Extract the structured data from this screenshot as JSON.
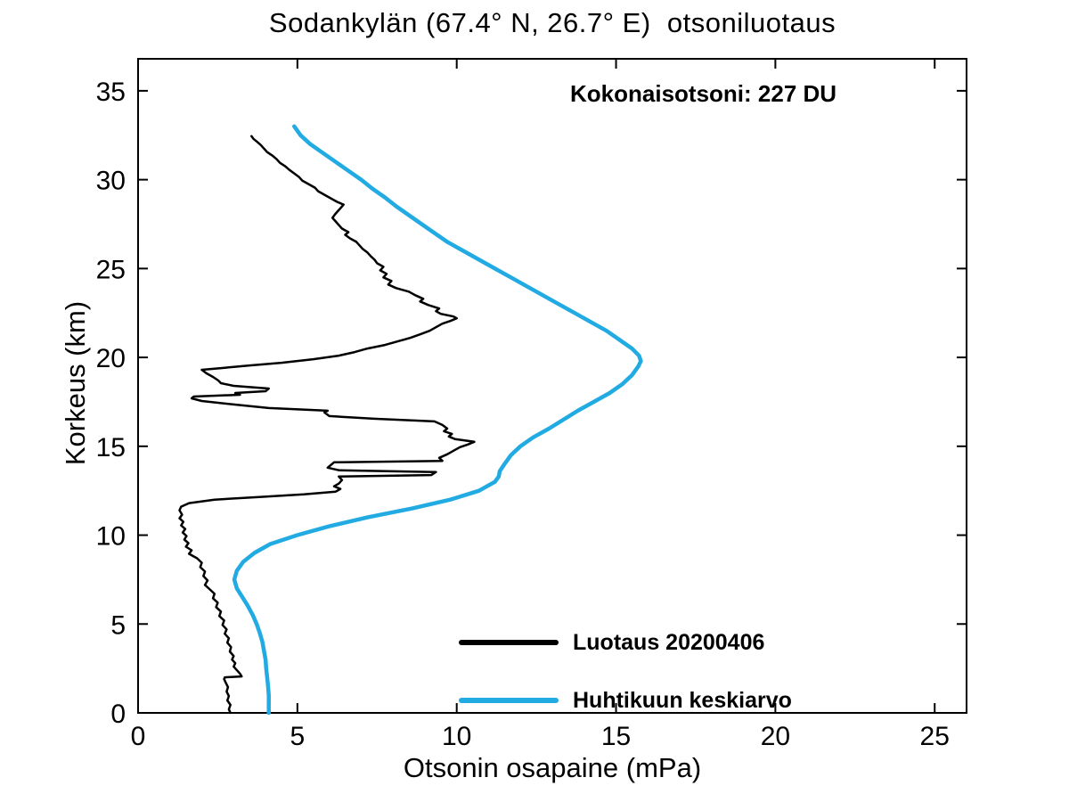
{
  "chart_data": {
    "type": "line",
    "title": "Sodankylän (67.4° N, 26.7° E)  otsoniluotaus",
    "xlabel": "Otsonin osapaine (mPa)",
    "ylabel": "Korkeus (km)",
    "annotation": "Kokonaisotsoni: 227 DU",
    "xlim": [
      0,
      26
    ],
    "ylim": [
      0,
      36.8
    ],
    "xticks": [
      0,
      5,
      10,
      15,
      20,
      25
    ],
    "yticks": [
      0,
      5,
      10,
      15,
      20,
      25,
      30,
      35
    ],
    "grid": false,
    "legend_position": "inside-bottom-right",
    "series": [
      {
        "name": "Luotaus 20200406",
        "color": "#000000",
        "width": 2.5,
        "points": [
          [
            2.9,
            0.0
          ],
          [
            2.85,
            0.2
          ],
          [
            2.9,
            0.45
          ],
          [
            2.8,
            0.7
          ],
          [
            2.85,
            0.95
          ],
          [
            2.78,
            1.2
          ],
          [
            2.82,
            1.45
          ],
          [
            2.75,
            1.7
          ],
          [
            2.7,
            1.9
          ],
          [
            2.72,
            2.0
          ],
          [
            3.25,
            2.05
          ],
          [
            3.2,
            2.2
          ],
          [
            3.1,
            2.4
          ],
          [
            3.0,
            2.6
          ],
          [
            3.05,
            2.8
          ],
          [
            2.95,
            3.0
          ],
          [
            3.0,
            3.2
          ],
          [
            2.88,
            3.45
          ],
          [
            2.92,
            3.7
          ],
          [
            2.8,
            3.95
          ],
          [
            2.85,
            4.2
          ],
          [
            2.72,
            4.45
          ],
          [
            2.78,
            4.7
          ],
          [
            2.65,
            4.95
          ],
          [
            2.7,
            5.2
          ],
          [
            2.55,
            5.45
          ],
          [
            2.6,
            5.7
          ],
          [
            2.45,
            5.95
          ],
          [
            2.5,
            6.2
          ],
          [
            2.35,
            6.45
          ],
          [
            2.4,
            6.7
          ],
          [
            2.25,
            6.95
          ],
          [
            2.1,
            7.2
          ],
          [
            2.18,
            7.45
          ],
          [
            2.05,
            7.7
          ],
          [
            2.1,
            7.95
          ],
          [
            1.95,
            8.2
          ],
          [
            2.0,
            8.45
          ],
          [
            1.85,
            8.7
          ],
          [
            1.6,
            8.95
          ],
          [
            1.68,
            9.15
          ],
          [
            1.5,
            9.35
          ],
          [
            1.58,
            9.55
          ],
          [
            1.45,
            9.75
          ],
          [
            1.52,
            9.95
          ],
          [
            1.4,
            10.15
          ],
          [
            1.48,
            10.35
          ],
          [
            1.35,
            10.55
          ],
          [
            1.42,
            10.75
          ],
          [
            1.3,
            10.95
          ],
          [
            1.38,
            11.15
          ],
          [
            1.3,
            11.4
          ],
          [
            1.35,
            11.6
          ],
          [
            1.6,
            11.8
          ],
          [
            2.4,
            12.0
          ],
          [
            3.8,
            12.15
          ],
          [
            5.2,
            12.3
          ],
          [
            6.2,
            12.45
          ],
          [
            6.35,
            12.6
          ],
          [
            6.15,
            12.75
          ],
          [
            6.3,
            12.9
          ],
          [
            6.4,
            13.1
          ],
          [
            6.3,
            13.3
          ],
          [
            9.2,
            13.38
          ],
          [
            9.35,
            13.55
          ],
          [
            6.3,
            13.65
          ],
          [
            5.95,
            13.8
          ],
          [
            6.05,
            13.95
          ],
          [
            6.15,
            14.1
          ],
          [
            9.55,
            14.18
          ],
          [
            9.45,
            14.35
          ],
          [
            9.7,
            14.55
          ],
          [
            9.9,
            14.75
          ],
          [
            10.1,
            14.95
          ],
          [
            10.35,
            15.1
          ],
          [
            10.55,
            15.25
          ],
          [
            9.95,
            15.4
          ],
          [
            9.75,
            15.55
          ],
          [
            9.85,
            15.7
          ],
          [
            9.6,
            15.85
          ],
          [
            9.7,
            16.0
          ],
          [
            9.55,
            16.2
          ],
          [
            9.3,
            16.4
          ],
          [
            7.4,
            16.55
          ],
          [
            6.0,
            16.7
          ],
          [
            5.85,
            16.9
          ],
          [
            5.95,
            17.0
          ],
          [
            4.1,
            17.15
          ],
          [
            3.0,
            17.35
          ],
          [
            2.0,
            17.55
          ],
          [
            1.68,
            17.7
          ],
          [
            1.75,
            17.8
          ],
          [
            3.2,
            17.9
          ],
          [
            3.05,
            18.0
          ],
          [
            4.0,
            18.1
          ],
          [
            4.1,
            18.25
          ],
          [
            3.0,
            18.4
          ],
          [
            2.6,
            18.55
          ],
          [
            2.52,
            18.7
          ],
          [
            2.35,
            18.9
          ],
          [
            2.15,
            19.1
          ],
          [
            2.0,
            19.3
          ],
          [
            2.6,
            19.4
          ],
          [
            3.5,
            19.55
          ],
          [
            4.5,
            19.7
          ],
          [
            5.5,
            19.9
          ],
          [
            6.3,
            20.1
          ],
          [
            6.8,
            20.3
          ],
          [
            7.2,
            20.5
          ],
          [
            7.75,
            20.7
          ],
          [
            8.15,
            20.9
          ],
          [
            8.55,
            21.1
          ],
          [
            8.85,
            21.3
          ],
          [
            9.15,
            21.5
          ],
          [
            9.35,
            21.7
          ],
          [
            9.55,
            21.9
          ],
          [
            9.8,
            22.05
          ],
          [
            10.0,
            22.2
          ],
          [
            9.9,
            22.3
          ],
          [
            9.5,
            22.45
          ],
          [
            9.35,
            22.6
          ],
          [
            9.45,
            22.75
          ],
          [
            9.1,
            22.95
          ],
          [
            8.85,
            23.15
          ],
          [
            8.95,
            23.3
          ],
          [
            8.7,
            23.5
          ],
          [
            8.5,
            23.7
          ],
          [
            8.1,
            23.9
          ],
          [
            7.85,
            24.1
          ],
          [
            7.95,
            24.3
          ],
          [
            7.7,
            24.5
          ],
          [
            7.8,
            24.7
          ],
          [
            7.6,
            24.9
          ],
          [
            7.7,
            25.1
          ],
          [
            7.5,
            25.3
          ],
          [
            7.42,
            25.5
          ],
          [
            7.3,
            25.7
          ],
          [
            7.2,
            25.9
          ],
          [
            7.05,
            26.1
          ],
          [
            6.95,
            26.3
          ],
          [
            6.85,
            26.5
          ],
          [
            6.65,
            26.7
          ],
          [
            6.5,
            26.9
          ],
          [
            6.6,
            27.05
          ],
          [
            6.4,
            27.25
          ],
          [
            6.3,
            27.45
          ],
          [
            6.2,
            27.65
          ],
          [
            6.1,
            27.85
          ],
          [
            6.18,
            28.05
          ],
          [
            6.28,
            28.25
          ],
          [
            6.38,
            28.45
          ],
          [
            6.45,
            28.6
          ],
          [
            6.25,
            28.75
          ],
          [
            6.05,
            28.95
          ],
          [
            5.85,
            29.15
          ],
          [
            5.65,
            29.35
          ],
          [
            5.55,
            29.55
          ],
          [
            5.35,
            29.75
          ],
          [
            5.15,
            29.95
          ],
          [
            5.05,
            30.15
          ],
          [
            4.9,
            30.35
          ],
          [
            4.75,
            30.55
          ],
          [
            4.62,
            30.75
          ],
          [
            4.45,
            30.95
          ],
          [
            4.35,
            31.15
          ],
          [
            4.22,
            31.35
          ],
          [
            4.05,
            31.55
          ],
          [
            3.95,
            31.75
          ],
          [
            3.85,
            31.95
          ],
          [
            3.72,
            32.15
          ],
          [
            3.62,
            32.3
          ],
          [
            3.56,
            32.45
          ]
        ]
      },
      {
        "name": "Huhtikuun keskiarvo",
        "color": "#22ABE2",
        "width": 4.5,
        "points": [
          [
            4.1,
            0.0
          ],
          [
            4.1,
            0.5
          ],
          [
            4.1,
            1.0
          ],
          [
            4.08,
            1.5
          ],
          [
            4.05,
            2.0
          ],
          [
            4.02,
            2.5
          ],
          [
            4.0,
            3.0
          ],
          [
            3.95,
            3.5
          ],
          [
            3.9,
            4.0
          ],
          [
            3.82,
            4.5
          ],
          [
            3.72,
            5.0
          ],
          [
            3.6,
            5.5
          ],
          [
            3.45,
            6.0
          ],
          [
            3.28,
            6.5
          ],
          [
            3.1,
            7.0
          ],
          [
            3.02,
            7.5
          ],
          [
            3.1,
            8.0
          ],
          [
            3.3,
            8.5
          ],
          [
            3.65,
            9.0
          ],
          [
            4.15,
            9.5
          ],
          [
            5.0,
            10.0
          ],
          [
            6.0,
            10.5
          ],
          [
            7.2,
            11.0
          ],
          [
            8.6,
            11.5
          ],
          [
            9.8,
            12.0
          ],
          [
            10.7,
            12.5
          ],
          [
            11.2,
            13.0
          ],
          [
            11.32,
            13.3
          ],
          [
            11.35,
            13.6
          ],
          [
            11.5,
            14.0
          ],
          [
            11.7,
            14.5
          ],
          [
            12.0,
            15.0
          ],
          [
            12.4,
            15.5
          ],
          [
            12.9,
            16.0
          ],
          [
            13.35,
            16.5
          ],
          [
            13.8,
            17.0
          ],
          [
            14.3,
            17.5
          ],
          [
            14.8,
            18.0
          ],
          [
            15.2,
            18.5
          ],
          [
            15.5,
            19.0
          ],
          [
            15.7,
            19.5
          ],
          [
            15.78,
            19.8
          ],
          [
            15.72,
            20.1
          ],
          [
            15.5,
            20.5
          ],
          [
            15.1,
            21.0
          ],
          [
            14.7,
            21.5
          ],
          [
            14.2,
            22.0
          ],
          [
            13.7,
            22.5
          ],
          [
            13.2,
            23.0
          ],
          [
            12.7,
            23.5
          ],
          [
            12.2,
            24.0
          ],
          [
            11.7,
            24.5
          ],
          [
            11.2,
            25.0
          ],
          [
            10.7,
            25.5
          ],
          [
            10.2,
            26.0
          ],
          [
            9.7,
            26.5
          ],
          [
            9.3,
            27.0
          ],
          [
            8.9,
            27.5
          ],
          [
            8.5,
            28.0
          ],
          [
            8.1,
            28.5
          ],
          [
            7.75,
            29.0
          ],
          [
            7.35,
            29.5
          ],
          [
            7.0,
            30.0
          ],
          [
            6.6,
            30.5
          ],
          [
            6.2,
            31.0
          ],
          [
            5.8,
            31.5
          ],
          [
            5.4,
            32.0
          ],
          [
            5.1,
            32.5
          ],
          [
            4.9,
            33.0
          ]
        ]
      }
    ]
  }
}
